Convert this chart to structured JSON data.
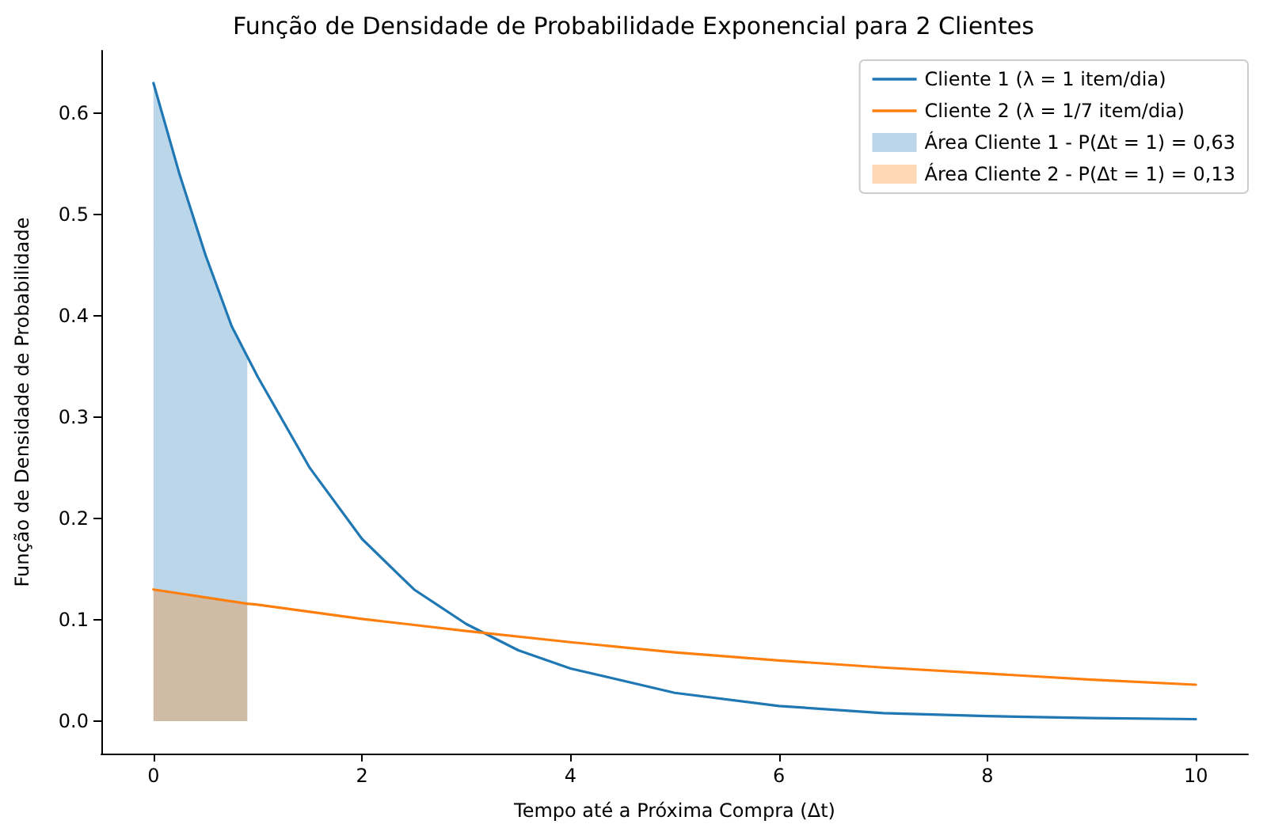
{
  "chart_data": {
    "type": "line",
    "title": "Função de Densidade de Probabilidade Exponencial para 2 Clientes",
    "xlabel": "Tempo até a Próxima Compra (Δt)",
    "ylabel": "Função de Densidade de Probabilidade",
    "xlim": [
      -0.5,
      10.5
    ],
    "xticks": [
      0,
      2,
      4,
      6,
      8,
      10
    ],
    "ylim": [
      -0.032,
      0.662
    ],
    "yticks": [
      {
        "value": 0,
        "label": "0.0"
      },
      {
        "value": 0.1,
        "label": "0.1"
      },
      {
        "value": 0.2,
        "label": "0.2"
      },
      {
        "value": 0.3,
        "label": "0.3"
      },
      {
        "value": 0.4,
        "label": "0.4"
      },
      {
        "value": 0.5,
        "label": "0.5"
      },
      {
        "value": 0.6,
        "label": "0.6"
      }
    ],
    "grid": false,
    "legend": "top right",
    "marker": "none",
    "line_style": "solid",
    "series": [
      {
        "name": "Cliente 1 (λ = 1 item/dia)",
        "color": "#1f77b4",
        "x": [
          0,
          0.25,
          0.5,
          0.75,
          0.9,
          1,
          1.5,
          2,
          2.5,
          3,
          3.5,
          4,
          5,
          6,
          7,
          8,
          9,
          10
        ],
        "values": [
          0.63,
          0.54,
          0.46,
          0.39,
          0.36,
          0.34,
          0.25,
          0.18,
          0.13,
          0.096,
          0.07,
          0.052,
          0.028,
          0.015,
          0.008,
          0.005,
          0.003,
          0.002
        ]
      },
      {
        "name": "Cliente 2 (λ = 1/7 item/dia)",
        "color": "#ff7f0e",
        "x": [
          0,
          0.9,
          1,
          2,
          3,
          4,
          5,
          6,
          7,
          8,
          9,
          10
        ],
        "values": [
          0.13,
          0.116,
          0.115,
          0.101,
          0.089,
          0.078,
          0.068,
          0.06,
          0.053,
          0.047,
          0.041,
          0.036
        ]
      },
      {
        "name": "Área Cliente 1 - P(Δt = 1) = 0,63",
        "type": "area",
        "color": "#1f77b4",
        "x": [
          0,
          0.25,
          0.5,
          0.75,
          0.9
        ],
        "values": [
          0.63,
          0.54,
          0.46,
          0.39,
          0.36
        ]
      },
      {
        "name": "Área Cliente 2 - P(Δt = 1) = 0,13",
        "type": "area",
        "color": "#ff7f0e",
        "x": [
          0,
          0.45,
          0.9
        ],
        "values": [
          0.13,
          0.122,
          0.116
        ]
      }
    ]
  }
}
